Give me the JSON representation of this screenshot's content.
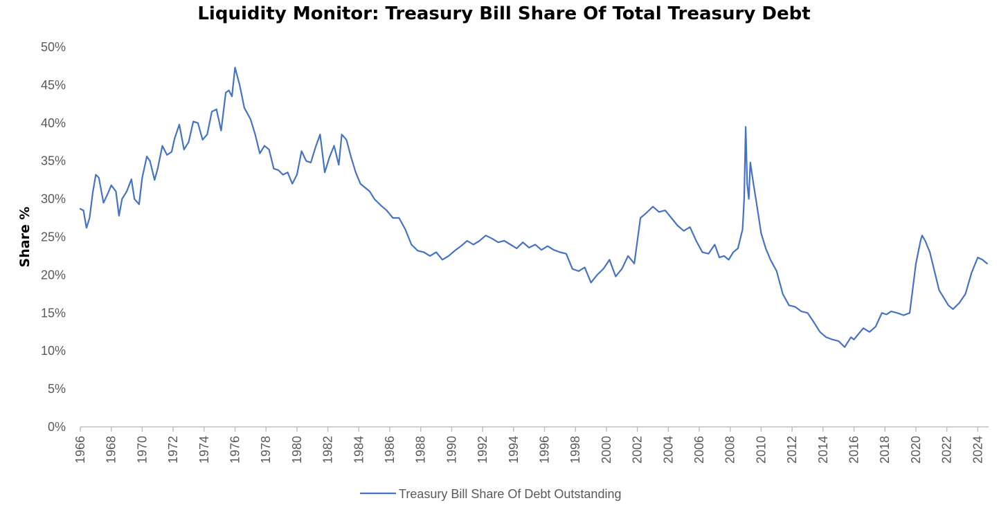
{
  "chart_data": {
    "type": "line",
    "title": "Liquidity Monitor: Treasury Bill Share Of Total Treasury Debt",
    "xlabel": "",
    "ylabel": "Share %",
    "ylim": [
      0,
      50
    ],
    "y_ticks": [
      "0%",
      "5%",
      "10%",
      "15%",
      "20%",
      "25%",
      "30%",
      "35%",
      "40%",
      "45%",
      "50%"
    ],
    "xlim": [
      1966,
      2024.7
    ],
    "x_ticks": [
      "1966",
      "1968",
      "1970",
      "1972",
      "1974",
      "1976",
      "1978",
      "1980",
      "1982",
      "1984",
      "1986",
      "1988",
      "1990",
      "1992",
      "1994",
      "1996",
      "1998",
      "2000",
      "2002",
      "2004",
      "2006",
      "2008",
      "2010",
      "2012",
      "2014",
      "2016",
      "2018",
      "2020",
      "2022",
      "2024"
    ],
    "grid": false,
    "legend_position": "bottom",
    "series": [
      {
        "name": "Treasury Bill Share Of Debt Outstanding",
        "color": "#4472C4",
        "x": [
          1966.0,
          1966.2,
          1966.4,
          1966.6,
          1966.8,
          1967.0,
          1967.2,
          1967.5,
          1967.8,
          1968.0,
          1968.3,
          1968.5,
          1968.7,
          1969.0,
          1969.3,
          1969.5,
          1969.8,
          1970.0,
          1970.3,
          1970.5,
          1970.8,
          1971.0,
          1971.3,
          1971.6,
          1971.9,
          1972.1,
          1972.4,
          1972.7,
          1973.0,
          1973.3,
          1973.6,
          1973.9,
          1974.2,
          1974.5,
          1974.8,
          1975.1,
          1975.4,
          1975.6,
          1975.8,
          1976.0,
          1976.3,
          1976.6,
          1977.0,
          1977.3,
          1977.6,
          1977.9,
          1978.2,
          1978.5,
          1978.8,
          1979.1,
          1979.4,
          1979.7,
          1980.0,
          1980.3,
          1980.6,
          1980.9,
          1981.2,
          1981.5,
          1981.8,
          1982.1,
          1982.4,
          1982.7,
          1982.9,
          1983.2,
          1983.5,
          1983.8,
          1984.1,
          1984.4,
          1984.7,
          1985.0,
          1985.4,
          1985.8,
          1986.2,
          1986.6,
          1987.0,
          1987.4,
          1987.8,
          1988.2,
          1988.6,
          1989.0,
          1989.4,
          1989.8,
          1990.2,
          1990.6,
          1991.0,
          1991.4,
          1991.8,
          1992.2,
          1992.6,
          1993.0,
          1993.4,
          1993.8,
          1994.2,
          1994.6,
          1995.0,
          1995.4,
          1995.8,
          1996.2,
          1996.6,
          1997.0,
          1997.4,
          1997.8,
          1998.2,
          1998.6,
          1999.0,
          1999.4,
          1999.8,
          2000.2,
          2000.6,
          2001.0,
          2001.4,
          2001.8,
          2002.2,
          2002.6,
          2003.0,
          2003.4,
          2003.8,
          2004.2,
          2004.6,
          2005.0,
          2005.4,
          2005.8,
          2006.2,
          2006.6,
          2007.0,
          2007.3,
          2007.6,
          2007.9,
          2008.2,
          2008.5,
          2008.8,
          2008.9,
          2009.0,
          2009.1,
          2009.2,
          2009.3,
          2009.5,
          2009.7,
          2010.0,
          2010.3,
          2010.6,
          2011.0,
          2011.4,
          2011.8,
          2012.2,
          2012.6,
          2013.0,
          2013.4,
          2013.8,
          2014.2,
          2014.6,
          2015.0,
          2015.4,
          2015.8,
          2016.0,
          2016.2,
          2016.6,
          2017.0,
          2017.4,
          2017.8,
          2018.1,
          2018.4,
          2018.8,
          2019.2,
          2019.6,
          2020.0,
          2020.3,
          2020.4,
          2020.6,
          2020.9,
          2021.2,
          2021.5,
          2021.8,
          2022.1,
          2022.4,
          2022.8,
          2023.2,
          2023.6,
          2024.0,
          2024.3,
          2024.6
        ],
        "values": [
          28.7,
          28.5,
          26.2,
          27.5,
          30.8,
          33.2,
          32.8,
          29.5,
          30.8,
          31.8,
          31.0,
          27.8,
          30.0,
          31.0,
          32.6,
          30.0,
          29.3,
          32.8,
          35.6,
          35.0,
          32.5,
          34.0,
          37.0,
          35.8,
          36.2,
          38.0,
          39.8,
          36.5,
          37.5,
          40.2,
          40.0,
          37.8,
          38.5,
          41.5,
          41.8,
          39.0,
          44.0,
          44.3,
          43.5,
          47.3,
          45.0,
          42.0,
          40.5,
          38.5,
          36.0,
          37.0,
          36.5,
          34.0,
          33.8,
          33.2,
          33.5,
          32.0,
          33.2,
          36.3,
          35.0,
          34.8,
          36.8,
          38.5,
          33.5,
          35.5,
          37.0,
          34.5,
          38.5,
          37.8,
          35.5,
          33.5,
          32.0,
          31.5,
          31.0,
          30.0,
          29.2,
          28.5,
          27.5,
          27.5,
          26.0,
          24.0,
          23.2,
          23.0,
          22.5,
          23.0,
          22.0,
          22.5,
          23.2,
          23.8,
          24.5,
          24.0,
          24.5,
          25.2,
          24.8,
          24.3,
          24.5,
          24.0,
          23.5,
          24.3,
          23.6,
          24.0,
          23.3,
          23.8,
          23.3,
          23.0,
          22.8,
          20.8,
          20.5,
          21.0,
          19.0,
          20.0,
          20.8,
          22.0,
          19.8,
          20.8,
          22.5,
          21.5,
          27.5,
          28.2,
          29.0,
          28.3,
          28.5,
          27.5,
          26.5,
          25.8,
          26.3,
          24.5,
          23.0,
          22.8,
          24.0,
          22.3,
          22.5,
          22.0,
          23.0,
          23.5,
          26.0,
          30.0,
          39.5,
          32.0,
          30.0,
          34.8,
          32.0,
          29.5,
          25.5,
          23.5,
          22.0,
          20.5,
          17.5,
          16.0,
          15.8,
          15.2,
          15.0,
          13.8,
          12.5,
          11.8,
          11.5,
          11.3,
          10.5,
          11.8,
          11.5,
          12.0,
          13.0,
          12.5,
          13.2,
          15.0,
          14.8,
          15.2,
          15.0,
          14.7,
          15.0,
          21.5,
          24.5,
          25.2,
          24.5,
          23.0,
          20.5,
          18.0,
          17.0,
          16.0,
          15.5,
          16.3,
          17.5,
          20.3,
          22.3,
          22.0,
          21.5
        ]
      }
    ]
  }
}
